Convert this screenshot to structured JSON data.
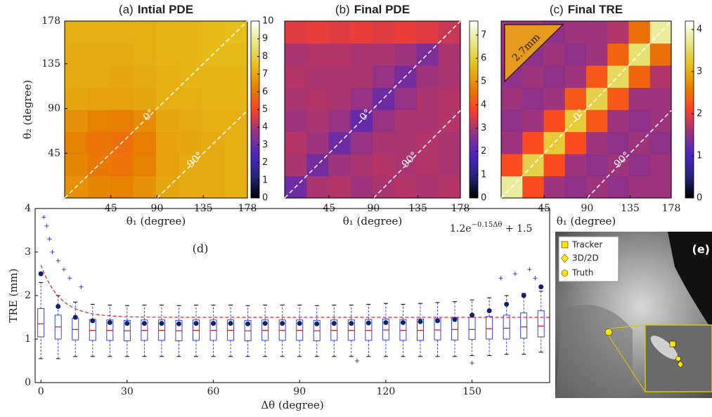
{
  "chart_data": [
    {
      "type": "heatmap",
      "panel": "(a)",
      "title": "Intial PDE",
      "xlabel": "θ₁ (degree)",
      "ylabel": "θ₂ (degree)",
      "xlim": [
        0,
        178
      ],
      "ylim": [
        0,
        178
      ],
      "xticks": [
        45,
        90,
        135,
        178
      ],
      "yticks": [
        45,
        90,
        135,
        178
      ],
      "clim": [
        0,
        10
      ],
      "cticks": [
        0,
        1,
        2,
        3,
        4,
        5,
        6,
        7,
        8,
        9,
        10
      ],
      "diagonal_offsets": [
        0,
        90
      ],
      "diagonal_labels": [
        "0°",
        "90°"
      ],
      "z": [
        [
          6.6,
          6.4,
          6.3,
          6.6,
          7.0,
          7.1,
          7.1,
          7.2
        ],
        [
          6.4,
          6.1,
          6.0,
          6.3,
          6.9,
          7.1,
          7.1,
          7.2
        ],
        [
          6.3,
          6.0,
          5.9,
          6.2,
          6.9,
          7.0,
          7.1,
          7.2
        ],
        [
          6.6,
          6.3,
          6.2,
          6.5,
          7.0,
          7.1,
          7.2,
          7.2
        ],
        [
          7.0,
          6.9,
          6.9,
          7.0,
          7.2,
          7.2,
          7.3,
          7.3
        ],
        [
          7.1,
          7.1,
          7.0,
          7.1,
          7.2,
          7.3,
          7.3,
          7.3
        ],
        [
          7.1,
          7.1,
          7.1,
          7.2,
          7.3,
          7.3,
          7.4,
          7.4
        ],
        [
          7.2,
          7.2,
          7.2,
          7.2,
          7.3,
          7.3,
          7.4,
          7.5
        ]
      ]
    },
    {
      "type": "heatmap",
      "panel": "(b)",
      "title": "Final PDE",
      "xlabel": "θ₁ (degree)",
      "xlim": [
        0,
        178
      ],
      "ylim": [
        0,
        178
      ],
      "xticks": [
        45,
        90,
        135,
        178
      ],
      "clim": [
        0,
        7.6
      ],
      "cticks": [
        0,
        1,
        2,
        3,
        4,
        5,
        6,
        7
      ],
      "diagonal_offsets": [
        0,
        90
      ],
      "diagonal_labels": [
        "0°",
        "90°"
      ],
      "z": [
        [
          2.3,
          3.0,
          3.1,
          2.9,
          3.0,
          3.1,
          3.0,
          3.1
        ],
        [
          3.0,
          2.4,
          2.9,
          3.0,
          3.1,
          3.0,
          3.1,
          3.0
        ],
        [
          3.1,
          2.9,
          2.3,
          2.8,
          3.0,
          3.0,
          3.1,
          3.0
        ],
        [
          2.9,
          3.0,
          2.8,
          2.2,
          2.8,
          3.0,
          3.0,
          3.1
        ],
        [
          3.0,
          3.1,
          3.0,
          2.8,
          2.3,
          2.8,
          3.0,
          3.1
        ],
        [
          3.1,
          3.0,
          3.0,
          3.0,
          2.8,
          2.4,
          2.9,
          3.0
        ],
        [
          3.0,
          3.1,
          3.1,
          3.0,
          3.0,
          2.9,
          2.5,
          3.0
        ],
        [
          3.5,
          3.6,
          3.5,
          3.6,
          3.5,
          3.6,
          3.5,
          3.3
        ]
      ]
    },
    {
      "type": "heatmap",
      "panel": "(c)",
      "title": "Final TRE",
      "xlabel": "θ₁ (degree)",
      "xlim": [
        0,
        178
      ],
      "ylim": [
        0,
        178
      ],
      "xticks": [
        45,
        90,
        135,
        178
      ],
      "clim": [
        0,
        4.2
      ],
      "cticks": [
        0,
        1,
        2,
        3,
        4
      ],
      "diagonal_offsets": [
        0,
        90
      ],
      "diagonal_labels": [
        "0°",
        "90°"
      ],
      "inset_label": "2.7mm",
      "z": [
        [
          3.8,
          2.2,
          1.6,
          1.5,
          1.6,
          1.5,
          1.6,
          1.6
        ],
        [
          2.2,
          3.4,
          2.2,
          1.6,
          1.5,
          1.6,
          1.5,
          1.6
        ],
        [
          1.6,
          2.2,
          3.3,
          2.2,
          1.6,
          1.5,
          1.6,
          1.5
        ],
        [
          1.5,
          1.6,
          2.2,
          3.3,
          2.3,
          1.6,
          1.5,
          1.6
        ],
        [
          1.6,
          1.5,
          1.6,
          2.3,
          3.4,
          2.3,
          1.6,
          1.6
        ],
        [
          1.5,
          1.6,
          1.5,
          1.6,
          2.3,
          3.5,
          2.4,
          1.7
        ],
        [
          1.6,
          1.5,
          1.6,
          1.5,
          1.6,
          2.4,
          3.6,
          2.5
        ],
        [
          1.6,
          1.6,
          1.5,
          1.6,
          1.6,
          1.7,
          2.5,
          3.8
        ]
      ]
    },
    {
      "type": "box",
      "panel": "(d)",
      "xlabel": "Δθ (degree)",
      "ylabel": "TRE (mm)",
      "xlim": [
        -2,
        177
      ],
      "ylim": [
        0,
        4
      ],
      "xticks": [
        0,
        30,
        60,
        90,
        120,
        150
      ],
      "yticks": [
        0,
        1,
        2,
        3,
        4
      ],
      "fit_label": [
        "1.2e",
        "−0.15Δθ",
        " + 1.5"
      ],
      "fit": {
        "a": 1.2,
        "k": -0.15,
        "c": 1.5
      },
      "x": [
        0,
        6,
        12,
        18,
        24,
        30,
        36,
        42,
        48,
        54,
        60,
        66,
        72,
        78,
        84,
        90,
        96,
        102,
        108,
        114,
        120,
        126,
        132,
        138,
        144,
        150,
        156,
        162,
        168,
        174
      ],
      "median": [
        1.35,
        1.28,
        1.22,
        1.2,
        1.2,
        1.19,
        1.2,
        1.2,
        1.19,
        1.2,
        1.2,
        1.2,
        1.19,
        1.2,
        1.2,
        1.2,
        1.19,
        1.2,
        1.2,
        1.2,
        1.21,
        1.2,
        1.2,
        1.21,
        1.22,
        1.22,
        1.24,
        1.25,
        1.28,
        1.3
      ],
      "q1": [
        1.05,
        1.0,
        0.98,
        0.97,
        0.97,
        0.96,
        0.97,
        0.97,
        0.96,
        0.97,
        0.97,
        0.97,
        0.96,
        0.97,
        0.97,
        0.97,
        0.96,
        0.97,
        0.97,
        0.97,
        0.98,
        0.97,
        0.97,
        0.98,
        0.98,
        0.99,
        1.0,
        1.0,
        1.02,
        1.05
      ],
      "q3": [
        1.7,
        1.55,
        1.48,
        1.45,
        1.44,
        1.43,
        1.44,
        1.44,
        1.43,
        1.44,
        1.44,
        1.44,
        1.43,
        1.44,
        1.44,
        1.44,
        1.43,
        1.44,
        1.44,
        1.45,
        1.46,
        1.45,
        1.46,
        1.47,
        1.48,
        1.5,
        1.52,
        1.55,
        1.6,
        1.65
      ],
      "low": [
        0.55,
        0.55,
        0.6,
        0.6,
        0.6,
        0.6,
        0.6,
        0.6,
        0.6,
        0.6,
        0.6,
        0.6,
        0.6,
        0.6,
        0.6,
        0.6,
        0.6,
        0.6,
        0.6,
        0.6,
        0.6,
        0.6,
        0.6,
        0.6,
        0.6,
        0.62,
        0.62,
        0.65,
        0.65,
        0.7
      ],
      "high": [
        2.3,
        2.0,
        1.85,
        1.8,
        1.78,
        1.77,
        1.78,
        1.78,
        1.77,
        1.78,
        1.78,
        1.78,
        1.77,
        1.78,
        1.78,
        1.78,
        1.77,
        1.78,
        1.78,
        1.8,
        1.82,
        1.8,
        1.82,
        1.84,
        1.86,
        1.9,
        1.95,
        2.0,
        2.05,
        2.1
      ],
      "mean": [
        2.5,
        1.75,
        1.5,
        1.42,
        1.38,
        1.36,
        1.36,
        1.36,
        1.35,
        1.36,
        1.36,
        1.36,
        1.35,
        1.36,
        1.36,
        1.36,
        1.35,
        1.36,
        1.36,
        1.37,
        1.38,
        1.38,
        1.4,
        1.42,
        1.45,
        1.55,
        1.65,
        1.8,
        2.0,
        2.2
      ],
      "outliers_x": [
        1,
        2,
        3,
        4,
        6,
        8,
        10,
        14,
        110,
        150,
        160,
        165,
        170,
        172
      ],
      "outliers_y": [
        3.8,
        3.6,
        3.3,
        3.0,
        2.8,
        2.6,
        2.4,
        2.2,
        0.5,
        0.45,
        2.4,
        2.5,
        2.6,
        2.4
      ]
    }
  ],
  "image_panel": {
    "label": "(e)",
    "legend": [
      "Tracker",
      "3D/2D",
      "Truth"
    ]
  }
}
